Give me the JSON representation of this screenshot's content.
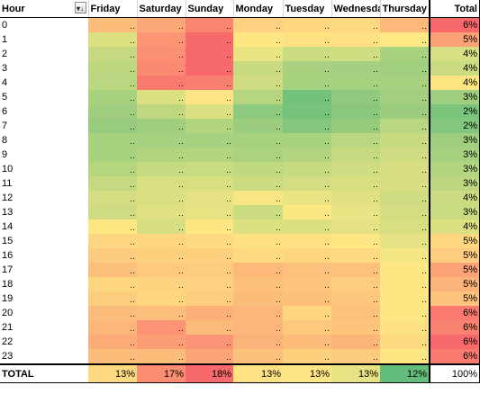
{
  "headers": {
    "hour": "Hour",
    "days": [
      "Friday",
      "Saturday",
      "Sunday",
      "Monday",
      "Tuesday",
      "Wednesda",
      "Thursday"
    ],
    "total": "Total",
    "filter_icon": "filter-dropdown-icon"
  },
  "rows": [
    {
      "hour": "0",
      "total": "6%",
      "total_color": "#f8696b",
      "colors": [
        "#fcbd7b",
        "#fca777",
        "#f98570",
        "#fdd17f",
        "#fed680",
        "#fed981",
        "#fcb97a"
      ]
    },
    {
      "hour": "1",
      "total": "5%",
      "total_color": "#fba176",
      "colors": [
        "#dce081",
        "#fb9574",
        "#f8696b",
        "#fee683",
        "#fee282",
        "#fee182",
        "#fee883"
      ]
    },
    {
      "hour": "2",
      "total": "4%",
      "total_color": "#d6df81",
      "colors": [
        "#c7d980",
        "#fa8f73",
        "#f8696b",
        "#eae583",
        "#cddb80",
        "#cfdc80",
        "#a9d27f"
      ]
    },
    {
      "hour": "3",
      "total": "4%",
      "total_color": "#cbdb80",
      "colors": [
        "#bdd780",
        "#fa8a72",
        "#f8696b",
        "#c8da80",
        "#a9d17f",
        "#a4d07f",
        "#a0cf7e"
      ]
    },
    {
      "hour": "4",
      "total": "4%",
      "total_color": "#fee582",
      "colors": [
        "#b9d680",
        "#f97b6f",
        "#f98070",
        "#d0dc81",
        "#a6d17f",
        "#a6d17f",
        "#a6d17f"
      ]
    },
    {
      "hour": "5",
      "total": "3%",
      "total_color": "#9ece7e",
      "colors": [
        "#a9d27f",
        "#dde081",
        "#fee483",
        "#b6d57f",
        "#72c27c",
        "#8ec97e",
        "#a3cf7f"
      ]
    },
    {
      "hour": "6",
      "total": "2%",
      "total_color": "#7ac47c",
      "colors": [
        "#9fce7e",
        "#bed780",
        "#dde082",
        "#8dc97e",
        "#76c37c",
        "#8bc87d",
        "#9ccd7e"
      ]
    },
    {
      "hour": "7",
      "total": "2%",
      "total_color": "#83c67d",
      "colors": [
        "#97cc7e",
        "#9fce7e",
        "#b4d57f",
        "#9ccd7e",
        "#84c67d",
        "#96cb7e",
        "#b9d680"
      ]
    },
    {
      "hour": "8",
      "total": "3%",
      "total_color": "#9fce7e",
      "colors": [
        "#a6d17f",
        "#a6d17f",
        "#a6d17f",
        "#a6d17f",
        "#a9d27f",
        "#bad680",
        "#c7da80"
      ]
    },
    {
      "hour": "9",
      "total": "3%",
      "total_color": "#a6d17f",
      "colors": [
        "#a9d27f",
        "#b2d47f",
        "#b4d57f",
        "#abd37f",
        "#b4d57f",
        "#c4d980",
        "#cfdc81"
      ]
    },
    {
      "hour": "10",
      "total": "3%",
      "total_color": "#b4d57f",
      "colors": [
        "#b6d57f",
        "#c4d980",
        "#c9db80",
        "#c0d880",
        "#c7da80",
        "#d0dc81",
        "#d6de81"
      ]
    },
    {
      "hour": "11",
      "total": "3%",
      "total_color": "#bcd780",
      "colors": [
        "#c4d980",
        "#d8df81",
        "#d8df81",
        "#cddb80",
        "#d4dd81",
        "#d8df81",
        "#d6de81"
      ]
    },
    {
      "hour": "12",
      "total": "4%",
      "total_color": "#cbdb80",
      "colors": [
        "#d4dd81",
        "#dadf81",
        "#e4e282",
        "#f7e683",
        "#e9e483",
        "#e2e182",
        "#cfdc81"
      ]
    },
    {
      "hour": "13",
      "total": "3%",
      "total_color": "#c9db80",
      "colors": [
        "#cfdc81",
        "#dfe082",
        "#e6e382",
        "#cbdb80",
        "#fbe883",
        "#e8e383",
        "#d4dd81"
      ]
    },
    {
      "hour": "14",
      "total": "4%",
      "total_color": "#dde081",
      "colors": [
        "#fee683",
        "#d6de81",
        "#fee683",
        "#dde081",
        "#dde081",
        "#e4e282",
        "#d8df81"
      ]
    },
    {
      "hour": "15",
      "total": "5%",
      "total_color": "#fed780",
      "colors": [
        "#fed580",
        "#fed680",
        "#fedb81",
        "#fee182",
        "#fee182",
        "#fee683",
        "#e4e282"
      ]
    },
    {
      "hour": "16",
      "total": "5%",
      "total_color": "#fdcc7e",
      "colors": [
        "#fdcb7d",
        "#fdd07e",
        "#fdd07e",
        "#fedb81",
        "#fed680",
        "#fedb81",
        "#f4e683"
      ]
    },
    {
      "hour": "17",
      "total": "5%",
      "total_color": "#fba276",
      "colors": [
        "#fcc07b",
        "#fdc97d",
        "#fdcc7e",
        "#fcb97a",
        "#fcc17c",
        "#fcc27c",
        "#fee783"
      ]
    },
    {
      "hour": "18",
      "total": "5%",
      "total_color": "#fcb379",
      "colors": [
        "#fed680",
        "#fed380",
        "#fdd17f",
        "#fcc07b",
        "#fdc47c",
        "#fdcc7e",
        "#fee783"
      ]
    },
    {
      "hour": "19",
      "total": "5%",
      "total_color": "#fdc37c",
      "colors": [
        "#fdcd7e",
        "#fed680",
        "#fdce7e",
        "#fcbd7b",
        "#fcc07b",
        "#fdc67d",
        "#fee783"
      ]
    },
    {
      "hour": "20",
      "total": "6%",
      "total_color": "#f97b6f",
      "colors": [
        "#fcbd7b",
        "#fcbe7b",
        "#fcaf78",
        "#fcb679",
        "#fed680",
        "#fcc27c",
        "#fee683"
      ]
    },
    {
      "hour": "21",
      "total": "6%",
      "total_color": "#f98170",
      "colors": [
        "#fcb679",
        "#fa9474",
        "#fcba7a",
        "#fcb679",
        "#fdc97d",
        "#fdc57c",
        "#fee182"
      ]
    },
    {
      "hour": "22",
      "total": "6%",
      "total_color": "#f8696b",
      "colors": [
        "#fcac78",
        "#fb9d75",
        "#fa9474",
        "#fcb379",
        "#fcbd7b",
        "#fcb479",
        "#fedb81"
      ]
    },
    {
      "hour": "23",
      "total": "6%",
      "total_color": "#f97a6f",
      "colors": [
        "#fcbd7b",
        "#fcbd7b",
        "#fca677",
        "#fcc07b",
        "#fdd07e",
        "#fdcb7d",
        "#fee683"
      ]
    }
  ],
  "footer": {
    "label": "TOTAL",
    "values": [
      "13%",
      "17%",
      "18%",
      "13%",
      "13%",
      "13%",
      "12%"
    ],
    "colors": [
      "#fedb81",
      "#fa8d72",
      "#f8696b",
      "#fee283",
      "#fde683",
      "#e6e382",
      "#63be7b"
    ],
    "total": "100%"
  }
}
